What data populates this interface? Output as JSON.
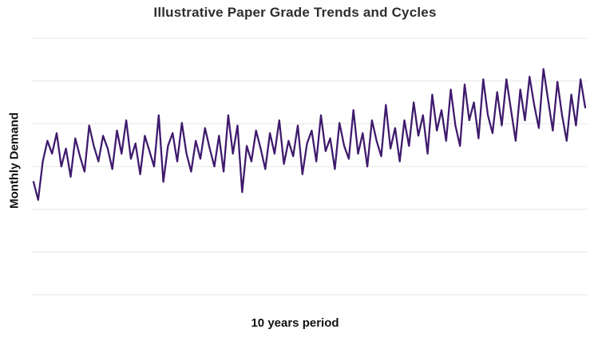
{
  "chart_data": {
    "type": "line",
    "title": "Illustrative Paper Grade Trends and Cycles",
    "xlabel": "10 years period",
    "ylabel": "Monthly Demand",
    "x_units": "months",
    "n_points": 120,
    "ylim": [
      0,
      100
    ],
    "grid": "horizontal",
    "gridline_count": 7,
    "legend": "none",
    "axis_tick_labels": "none",
    "line_color": "#3f1b6d",
    "gridline_color": "#e4e4e4",
    "background_color": "#ffffff",
    "values": [
      44,
      37,
      52,
      60,
      55,
      63,
      50,
      57,
      46,
      61,
      54,
      48,
      66,
      58,
      52,
      62,
      57,
      49,
      64,
      55,
      68,
      53,
      59,
      47,
      62,
      56,
      50,
      70,
      44,
      58,
      63,
      52,
      67,
      55,
      48,
      60,
      53,
      65,
      57,
      50,
      62,
      48,
      70,
      55,
      66,
      40,
      58,
      52,
      64,
      57,
      49,
      63,
      55,
      68,
      51,
      60,
      54,
      66,
      47,
      59,
      64,
      52,
      70,
      56,
      61,
      49,
      67,
      58,
      53,
      72,
      55,
      63,
      50,
      68,
      60,
      54,
      74,
      57,
      65,
      52,
      68,
      58,
      75,
      62,
      70,
      55,
      78,
      64,
      72,
      60,
      80,
      66,
      58,
      82,
      68,
      75,
      61,
      84,
      70,
      63,
      79,
      66,
      84,
      72,
      60,
      80,
      68,
      85,
      74,
      65,
      88,
      76,
      64,
      83,
      70,
      60,
      78,
      66,
      84,
      73
    ]
  }
}
